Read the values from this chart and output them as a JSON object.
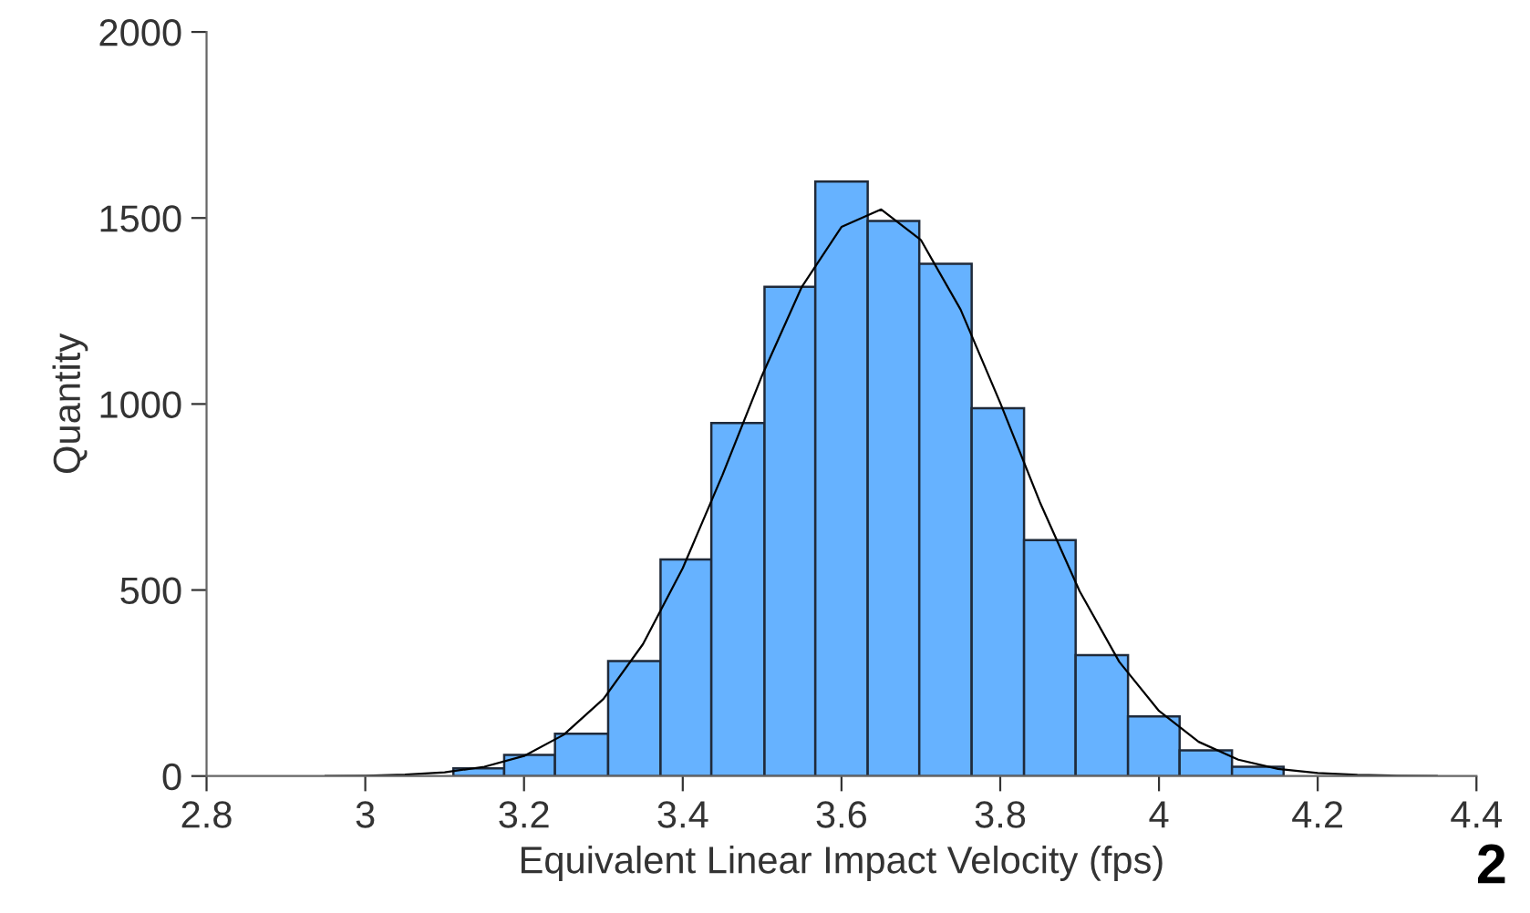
{
  "chart_data": {
    "type": "histogram",
    "xlabel": "Equivalent Linear Impact Velocity (fps)",
    "ylabel": "Quantity",
    "bins": [
      3.111,
      3.175,
      3.239,
      3.306,
      3.372,
      3.436,
      3.503,
      3.567,
      3.633,
      3.698,
      3.764,
      3.83,
      3.895,
      3.961,
      4.026,
      4.092,
      4.157
    ],
    "values": [
      21,
      57,
      114,
      309,
      582,
      949,
      1315,
      1598,
      1492,
      1377,
      989,
      634,
      325,
      160,
      69,
      25
    ],
    "color": "#66b2ff",
    "series": [
      {
        "type": "line",
        "color": "#000000",
        "x": [
          2.95,
          3.0,
          3.05,
          3.1,
          3.15,
          3.2,
          3.25,
          3.3,
          3.35,
          3.4,
          3.45,
          3.5,
          3.55,
          3.6,
          3.65,
          3.7,
          3.75,
          3.8,
          3.85,
          3.9,
          3.95,
          4.0,
          4.05,
          4.1,
          4.15,
          4.2,
          4.25,
          4.3,
          4.35
        ],
        "values": [
          0,
          1,
          4,
          10,
          25,
          54,
          111,
          207,
          355,
          559,
          809,
          1077,
          1315,
          1476,
          1523,
          1441,
          1254,
          1003,
          736,
          497,
          307,
          175,
          92,
          44,
          19,
          8,
          3,
          1,
          0
        ]
      }
    ],
    "xlim": [
      2.8,
      4.4
    ],
    "xticks": [
      2.8,
      3,
      3.2,
      3.4,
      3.6,
      3.8,
      4,
      4.2,
      4.4
    ],
    "ylim": [
      0,
      2000
    ],
    "yticks": [
      0,
      500,
      1000,
      1500,
      2000
    ],
    "grid": false,
    "annotations": [
      "2"
    ]
  }
}
